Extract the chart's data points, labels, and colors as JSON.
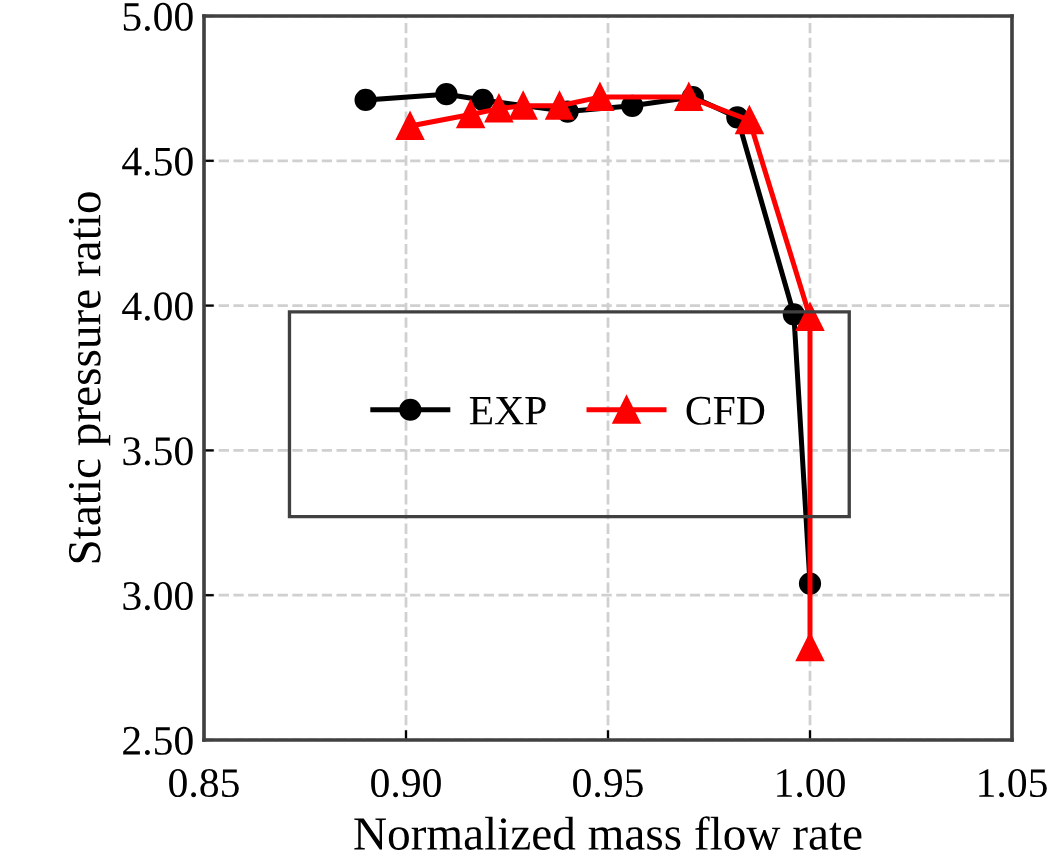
{
  "chart_data": {
    "type": "line",
    "xlabel": "Normalized mass flow rate",
    "ylabel": "Static pressure ratio",
    "xlim": [
      0.85,
      1.05
    ],
    "ylim": [
      2.5,
      5.0
    ],
    "xticks": [
      {
        "value": 0.85,
        "label": "0.85"
      },
      {
        "value": 0.9,
        "label": "0.90"
      },
      {
        "value": 0.95,
        "label": "0.95"
      },
      {
        "value": 1.0,
        "label": "1.00"
      },
      {
        "value": 1.05,
        "label": "1.05"
      }
    ],
    "yticks": [
      {
        "value": 2.5,
        "label": "2.50"
      },
      {
        "value": 3.0,
        "label": "3.00"
      },
      {
        "value": 3.5,
        "label": "3.50"
      },
      {
        "value": 4.0,
        "label": "4.00"
      },
      {
        "value": 4.5,
        "label": "4.50"
      },
      {
        "value": 5.0,
        "label": "5.00"
      }
    ],
    "grid": true,
    "legend": "left",
    "line_style": "solid",
    "series": [
      {
        "name": "EXP",
        "color": "#000000",
        "marker": "circle",
        "x": [
          0.89,
          0.91,
          0.919,
          0.94,
          0.956,
          0.971,
          0.982,
          0.996,
          1.0
        ],
        "values": [
          4.71,
          4.73,
          4.71,
          4.67,
          4.69,
          4.72,
          4.65,
          3.97,
          3.04
        ]
      },
      {
        "name": "CFD",
        "color": "#ff0000",
        "marker": "triangle",
        "x": [
          0.901,
          0.916,
          0.923,
          0.929,
          0.938,
          0.948,
          0.97,
          0.985,
          1.0,
          1.0
        ],
        "values": [
          4.62,
          4.66,
          4.68,
          4.69,
          4.69,
          4.72,
          4.72,
          4.64,
          3.96,
          2.82
        ]
      }
    ]
  }
}
